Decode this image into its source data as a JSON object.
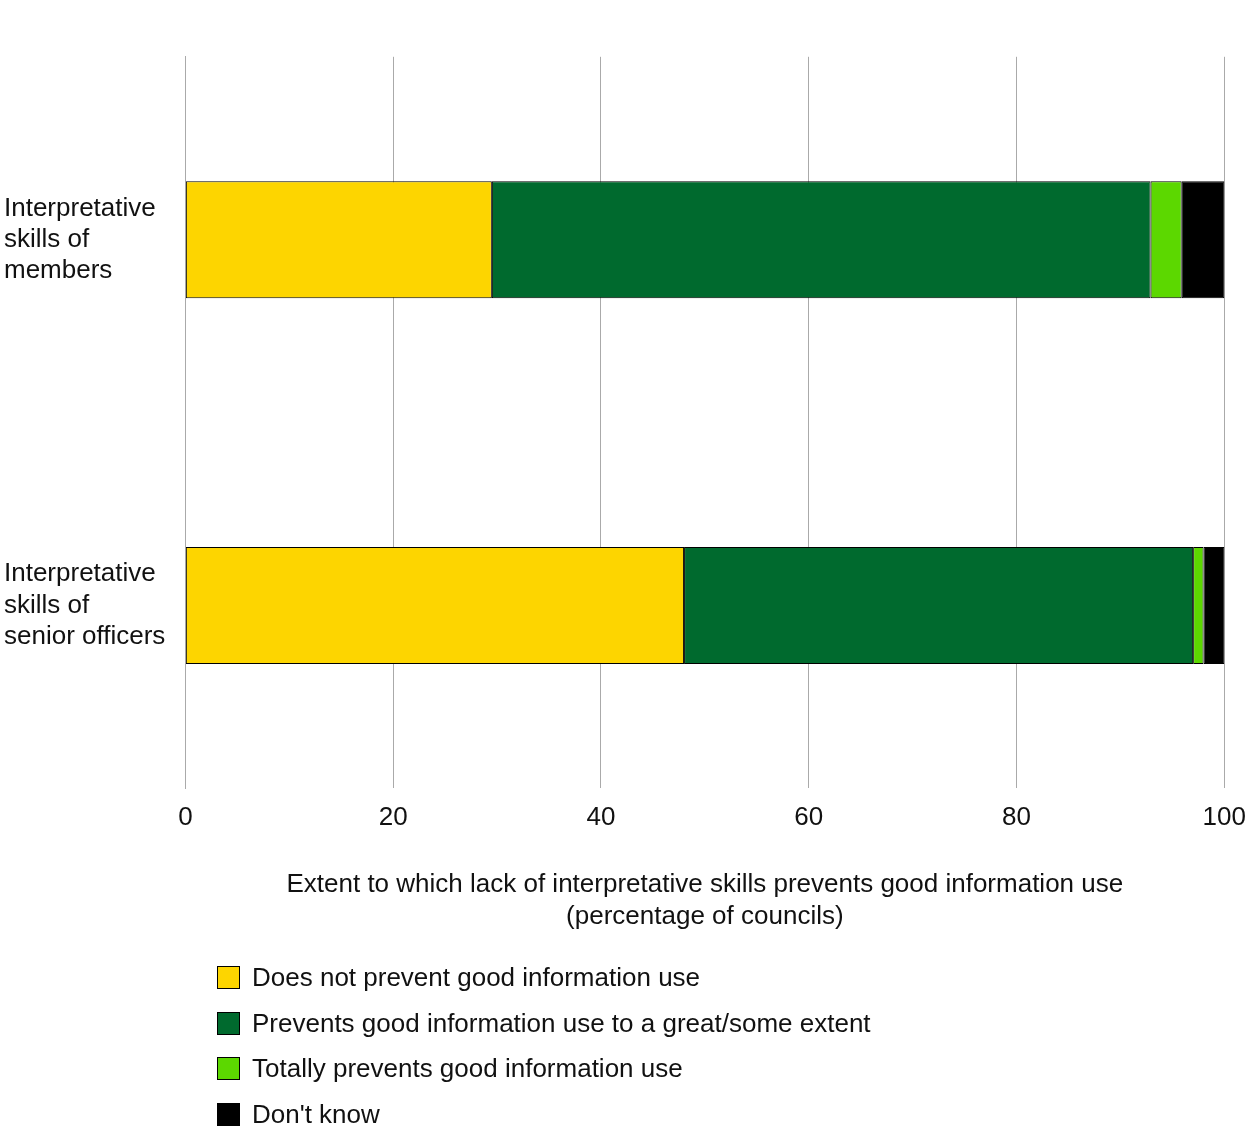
{
  "chart_data": {
    "type": "bar",
    "orientation": "horizontal",
    "stacked": true,
    "categories": [
      "Interpretative skills of members",
      "Interpretative skills of senior officers"
    ],
    "series": [
      {
        "name": "Does not prevent good information use",
        "color": "#fdd500",
        "values": [
          29.5,
          48
        ]
      },
      {
        "name": "Prevents good information use to a great/some extent",
        "color": "#006a2e",
        "values": [
          63.4,
          49
        ]
      },
      {
        "name": "Totally prevents good information use",
        "color": "#5cd800",
        "values": [
          3,
          1
        ]
      },
      {
        "name": "Don't know",
        "color": "#000000",
        "values": [
          4.1,
          2
        ]
      }
    ],
    "xlabel": "Extent to which lack of interpretative skills prevents good information use\n(percentage of councils)",
    "xlim": [
      0,
      100
    ],
    "xticks": [
      0,
      20,
      40,
      60,
      80,
      100
    ],
    "grid": "x",
    "legend": "bottom"
  }
}
